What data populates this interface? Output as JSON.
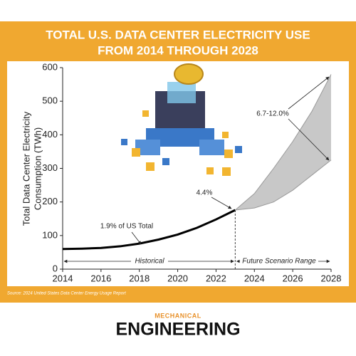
{
  "chart_data": {
    "type": "line",
    "title": [
      "TOTAL U.S. DATA CENTER ELECTRICITY USE",
      "FROM 2014 THROUGH 2028"
    ],
    "y_label": [
      "Total Data Center Electricity",
      "Consumption (TWh)"
    ],
    "x": [
      2014,
      2015,
      2016,
      2017,
      2018,
      2019,
      2020,
      2021,
      2022,
      2023,
      2024,
      2025,
      2026,
      2027,
      2028
    ],
    "series": [
      {
        "color": "#000000",
        "values": [
          60,
          61,
          63,
          68,
          76,
          88,
          103,
          123,
          148,
          176,
          null,
          null,
          null,
          null,
          null
        ]
      },
      {
        "color": "#999999",
        "values": [
          null,
          null,
          null,
          null,
          null,
          null,
          null,
          null,
          null,
          176,
          182,
          200,
          235,
          280,
          325
        ]
      },
      {
        "color": "#999999",
        "values": [
          null,
          null,
          null,
          null,
          null,
          null,
          null,
          null,
          null,
          176,
          225,
          300,
          380,
          470,
          580
        ]
      }
    ],
    "range_fill": "#c8c8c8",
    "xlim": [
      2014,
      2028
    ],
    "xticks": [
      2014,
      2016,
      2018,
      2020,
      2022,
      2024,
      2026,
      2028
    ],
    "ylim": [
      0,
      600
    ],
    "yticks": [
      0,
      100,
      200,
      300,
      400,
      500,
      600
    ],
    "annotations": [
      "1.9% of US Total",
      "4.4%",
      "6.7-12.0%"
    ],
    "periods": [
      "Historical",
      "Future Scenario Range"
    ]
  },
  "source": "Source: 2024 United States Data Center Energy Usage Report",
  "logo": {
    "small": "MECHANICAL",
    "large": "ENGINEERING"
  }
}
